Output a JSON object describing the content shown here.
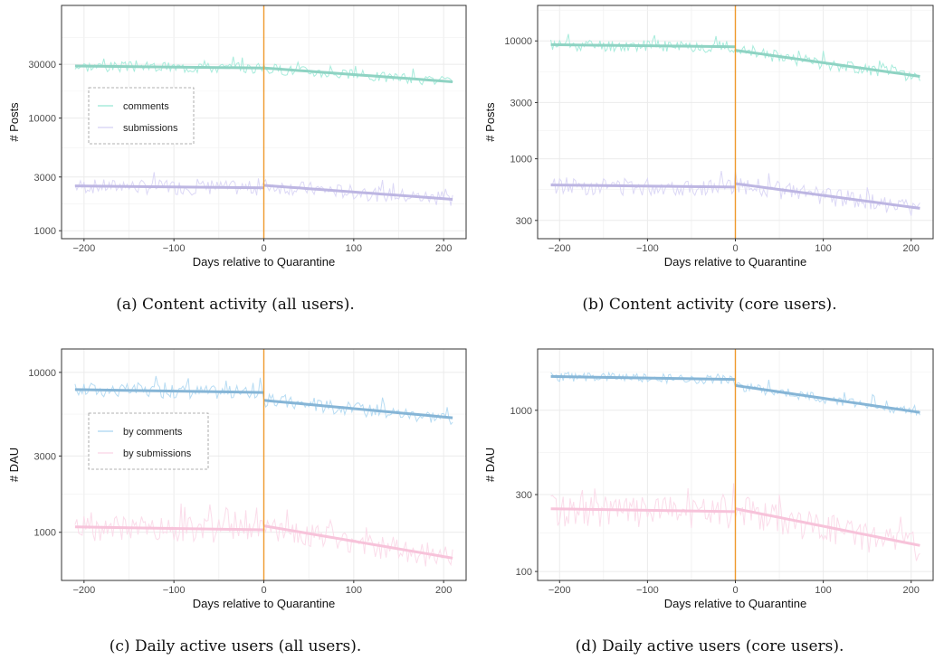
{
  "captions": {
    "a": "(a) Content activity (all users).",
    "b": "(b) Content activity (core users).",
    "c": "(c) Daily active users (all users).",
    "d": "(d) Daily active users (core users)."
  },
  "chart_data": [
    {
      "type": "line",
      "panel": "a",
      "xlabel": "Days relative to Quarantine",
      "ylabel": "# Posts",
      "x_ticks": [
        -200,
        -100,
        0,
        100,
        200
      ],
      "x_tick_labels": [
        "−200",
        "−100",
        "0",
        "100",
        "200"
      ],
      "y_ticks": [
        1000,
        3000,
        10000,
        30000
      ],
      "y_tick_labels": [
        "1000",
        "3000",
        "10000",
        "30000"
      ],
      "xlim": [
        -225,
        225
      ],
      "ylim": [
        850,
        100000
      ],
      "y_scale": "log",
      "grid": true,
      "legend": {
        "placement": "left-middle",
        "entries": [
          "comments",
          "submissions"
        ]
      },
      "vline_x": 0,
      "vline_color": "#ee9a2c",
      "series": [
        {
          "name": "comments",
          "color": "#a8ecdc",
          "trend_color": "#8fd3c3",
          "base_pre": 29000,
          "jump": 0,
          "end": 21000,
          "noise": 0.11,
          "seed": 3
        },
        {
          "name": "submissions",
          "color": "#dcd8f6",
          "trend_color": "#bdb6e2",
          "base_pre": 2500,
          "jump": 130,
          "end": 1900,
          "noise": 0.15,
          "seed": 7
        }
      ]
    },
    {
      "type": "line",
      "panel": "b",
      "xlabel": "Days relative to Quarantine",
      "ylabel": "# Posts",
      "x_ticks": [
        -200,
        -100,
        0,
        100,
        200
      ],
      "x_tick_labels": [
        "−200",
        "−100",
        "0",
        "100",
        "200"
      ],
      "y_ticks": [
        300,
        1000,
        3000,
        10000
      ],
      "y_tick_labels": [
        "300",
        "1000",
        "3000",
        "10000"
      ],
      "xlim": [
        -225,
        225
      ],
      "ylim": [
        210,
        20000
      ],
      "y_scale": "log",
      "grid": true,
      "vline_x": 0,
      "vline_color": "#ee9a2c",
      "series": [
        {
          "color": "#a8ecdc",
          "trend_color": "#8fd3c3",
          "base_pre": 9300,
          "jump": -600,
          "end": 5000,
          "noise": 0.12,
          "seed": 11
        },
        {
          "color": "#dcd8f6",
          "trend_color": "#bdb6e2",
          "base_pre": 600,
          "jump": 40,
          "end": 380,
          "noise": 0.17,
          "seed": 13
        }
      ]
    },
    {
      "type": "line",
      "panel": "c",
      "xlabel": "Days relative to Quarantine",
      "ylabel": "# DAU",
      "x_ticks": [
        -200,
        -100,
        0,
        100,
        200
      ],
      "x_tick_labels": [
        "−200",
        "−100",
        "0",
        "100",
        "200"
      ],
      "y_ticks": [
        1000,
        3000,
        10000
      ],
      "y_tick_labels": [
        "1000",
        "3000",
        "10000"
      ],
      "xlim": [
        -225,
        225
      ],
      "ylim": [
        500,
        14000
      ],
      "y_scale": "log",
      "grid": true,
      "legend": {
        "placement": "left-middle",
        "entries": [
          "by comments",
          "by submissions"
        ]
      },
      "vline_x": 0,
      "vline_color": "#ee9a2c",
      "series": [
        {
          "name": "by comments",
          "color": "#b7dcf3",
          "trend_color": "#86b5d6",
          "base_pre": 7800,
          "jump": -800,
          "end": 5200,
          "noise": 0.1,
          "seed": 17
        },
        {
          "name": "by submissions",
          "color": "#fbdcea",
          "trend_color": "#f7c3da",
          "base_pre": 1080,
          "jump": 60,
          "end": 690,
          "noise": 0.18,
          "seed": 19
        }
      ]
    },
    {
      "type": "line",
      "panel": "d",
      "xlabel": "Days relative to Quarantine",
      "ylabel": "# DAU",
      "x_ticks": [
        -200,
        -100,
        0,
        100,
        200
      ],
      "x_tick_labels": [
        "−200",
        "−100",
        "0",
        "100",
        "200"
      ],
      "y_ticks": [
        100,
        300,
        1000
      ],
      "y_tick_labels": [
        "100",
        "300",
        "1000"
      ],
      "xlim": [
        -225,
        225
      ],
      "ylim": [
        88,
        2400
      ],
      "y_scale": "log",
      "grid": true,
      "vline_x": 0,
      "vline_color": "#ee9a2c",
      "series": [
        {
          "color": "#b7dcf3",
          "trend_color": "#86b5d6",
          "base_pre": 1620,
          "jump": -130,
          "end": 970,
          "noise": 0.07,
          "seed": 23
        },
        {
          "color": "#fbdcea",
          "trend_color": "#f7c3da",
          "base_pre": 245,
          "jump": 10,
          "end": 145,
          "noise": 0.22,
          "seed": 29
        }
      ]
    }
  ]
}
